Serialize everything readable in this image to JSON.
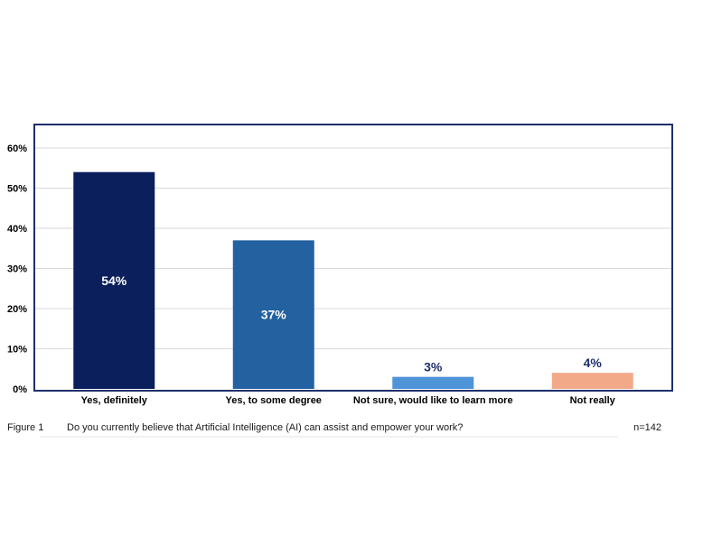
{
  "chart_data": {
    "type": "bar",
    "categories": [
      "Yes, definitely",
      "Yes, to some degree",
      "Not sure, would like to learn more",
      "Not really"
    ],
    "values": [
      54,
      37,
      3,
      4
    ],
    "data_labels": [
      "54%",
      "37%",
      "3%",
      "4%"
    ],
    "colors": [
      "#0b1f5c",
      "#2361a0",
      "#4f93d9",
      "#f2a988"
    ],
    "ylim": [
      0,
      60
    ],
    "yticks": [
      "0%",
      "10%",
      "20%",
      "30%",
      "40%",
      "50%",
      "60%"
    ],
    "grid": true,
    "frame_color": "#1f2f6b"
  },
  "caption": {
    "figure": "Figure 1",
    "question": "Do you currently believe that Artificial Intelligence (AI) can assist and empower your work?",
    "n": "n=142"
  }
}
